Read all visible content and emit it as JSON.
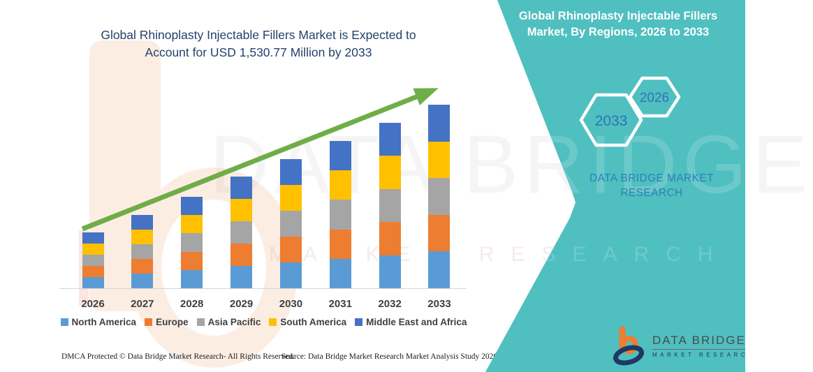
{
  "header": {
    "lines": [
      "Global Rhinoplasty Injectable Fillers Market is Expected to",
      "Account for USD 1,530.77 Million by 2033"
    ]
  },
  "right_panel": {
    "title_lines": [
      "Global Rhinoplasty Injectable Fillers",
      "Market, By Regions, 2026 to 2033"
    ],
    "hexagons": [
      {
        "label": "2033"
      },
      {
        "label": "2026"
      }
    ],
    "brand_lines": [
      "DATA BRIDGE MARKET",
      "RESEARCH"
    ]
  },
  "logo": {
    "name": "DATA BRIDGE",
    "subtitle": "MARKET RESEARCH"
  },
  "watermarks": {
    "brand": "DATA BRIDGE",
    "market": "MARKET RESEARCH"
  },
  "footer": {
    "dmca": "DMCA Protected © Data Bridge Market Research-  All Rights Reserved.",
    "source": "Source: Data Bridge Market Research  Market Analysis Study 2026"
  },
  "chart_data": {
    "type": "bar",
    "stacked": true,
    "title": "Global Rhinoplasty Injectable Fillers Market, By Regions, 2026 to 2033",
    "units": "USD Million (values estimated from bar heights; 2033 total = 1,530.77)",
    "categories": [
      "2026",
      "2027",
      "2028",
      "2029",
      "2030",
      "2031",
      "2032",
      "2033"
    ],
    "series": [
      {
        "name": "North America",
        "color": "#5B9BD5",
        "values": [
          93.1,
          122.2,
          152.5,
          186.2,
          215.4,
          245.6,
          275.9,
          306.2
        ]
      },
      {
        "name": "Europe",
        "color": "#ED7D31",
        "values": [
          93.1,
          122.2,
          152.5,
          186.2,
          215.4,
          245.6,
          275.9,
          306.2
        ]
      },
      {
        "name": "Asia Pacific",
        "color": "#A5A5A5",
        "values": [
          93.1,
          122.2,
          152.5,
          186.2,
          215.4,
          245.6,
          275.9,
          306.2
        ]
      },
      {
        "name": "South America",
        "color": "#FFC000",
        "values": [
          93.1,
          122.2,
          152.5,
          186.2,
          215.4,
          245.6,
          275.9,
          306.2
        ]
      },
      {
        "name": "Middle East and Africa",
        "color": "#4472C4",
        "values": [
          93.1,
          122.2,
          152.5,
          186.2,
          215.4,
          245.6,
          275.9,
          306.2
        ]
      }
    ],
    "totals": [
      465.6,
      611.1,
      762.4,
      931.2,
      1076.9,
      1228.1,
      1379.4,
      1530.77
    ],
    "ylim": [
      0,
      1600
    ],
    "grid": false,
    "legend_position": "bottom",
    "annotation": "green upward trend arrow across bar tops"
  },
  "colors": {
    "teal_panel": "#50BFC0",
    "title_text": "#24426B",
    "hexagon_label": "#2E74B5",
    "panel_brand_text": "#2E7FB8",
    "arrow_green": "#6FAD46",
    "legend_text": "#3F3F3F"
  }
}
